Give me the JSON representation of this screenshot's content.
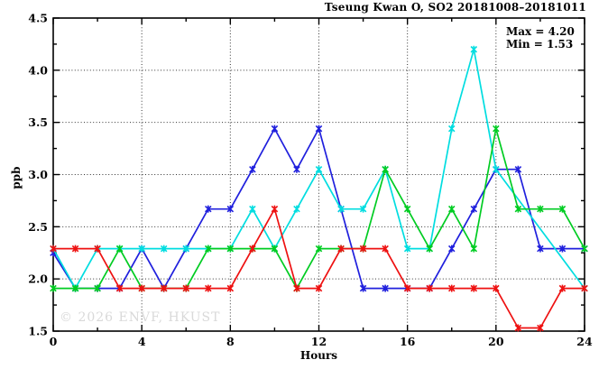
{
  "title": "Tseung Kwan O, SO2 20181008–20181011",
  "annotation": {
    "max_label": "Max = 4.20",
    "min_label": "Min = 1.53"
  },
  "watermark": "© 2026 ENVF, HKUST",
  "chart_data": {
    "type": "line",
    "title": "Tseung Kwan O, SO2 20181008–20181011",
    "xlabel": "Hours",
    "ylabel": "ppb",
    "xlim": [
      0,
      24
    ],
    "ylim": [
      1.5,
      4.5
    ],
    "grid": true,
    "x_major_ticks": [
      0,
      4,
      8,
      12,
      16,
      20,
      24
    ],
    "x_tick_labels": [
      "0",
      "4",
      "8",
      "12",
      "16",
      "20",
      "24"
    ],
    "x_minor_step": 2,
    "y_major_ticks": [
      1.5,
      2.0,
      2.5,
      3.0,
      3.5,
      4.0,
      4.5
    ],
    "y_tick_labels": [
      "1.5",
      "2.0",
      "2.5",
      "3.0",
      "3.5",
      "4.0",
      "4.5"
    ],
    "y_minor_step": 0.25,
    "x": [
      0,
      1,
      2,
      3,
      4,
      5,
      6,
      7,
      8,
      9,
      10,
      11,
      12,
      13,
      14,
      15,
      16,
      17,
      18,
      19,
      20,
      21,
      22,
      23,
      24
    ],
    "series": [
      {
        "name": "series-blue",
        "color": "#2020dd",
        "values": [
          2.25,
          1.91,
          1.91,
          1.91,
          2.29,
          1.91,
          2.29,
          2.67,
          2.67,
          3.05,
          3.44,
          3.05,
          3.44,
          2.67,
          1.91,
          1.91,
          1.91,
          1.91,
          2.29,
          2.67,
          3.05,
          3.05,
          2.29,
          2.29,
          2.29
        ]
      },
      {
        "name": "series-cyan",
        "color": "#00dde0",
        "values": [
          2.29,
          1.91,
          2.29,
          2.29,
          2.29,
          2.29,
          2.29,
          2.29,
          2.29,
          2.67,
          2.29,
          2.67,
          3.05,
          2.67,
          2.67,
          3.05,
          2.29,
          2.29,
          3.44,
          4.2,
          3.05,
          null,
          null,
          null,
          1.91
        ]
      },
      {
        "name": "series-green",
        "color": "#00cc22",
        "values": [
          1.91,
          1.91,
          1.91,
          2.29,
          1.91,
          1.91,
          1.91,
          2.29,
          2.29,
          2.29,
          2.29,
          1.91,
          2.29,
          2.29,
          2.29,
          3.05,
          2.67,
          2.29,
          2.67,
          2.29,
          3.44,
          2.67,
          2.67,
          2.67,
          2.29
        ]
      },
      {
        "name": "series-red",
        "color": "#ee1111",
        "values": [
          2.29,
          2.29,
          2.29,
          1.91,
          1.91,
          1.91,
          1.91,
          1.91,
          1.91,
          2.29,
          2.67,
          1.91,
          1.91,
          2.29,
          2.29,
          2.29,
          1.91,
          1.91,
          1.91,
          1.91,
          1.91,
          1.53,
          1.53,
          1.91,
          1.91
        ]
      }
    ],
    "stats": {
      "max": 4.2,
      "min": 1.53
    }
  }
}
